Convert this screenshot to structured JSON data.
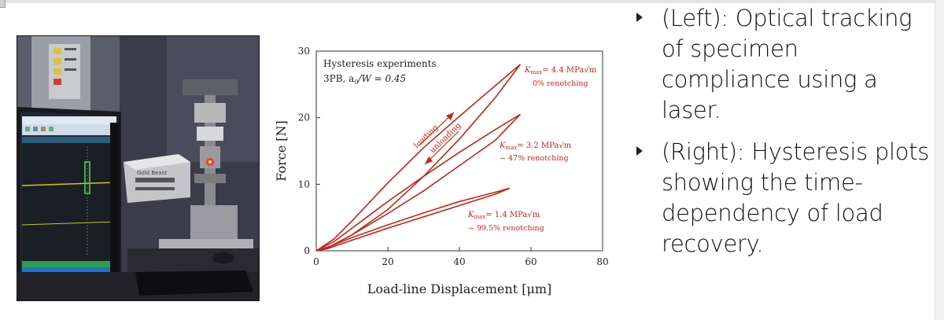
{
  "slide": {
    "bullets": [
      {
        "text": "(Left): Optical tracking of specimen compliance using a laser."
      },
      {
        "text": "(Right): Hysteresis plots showing the time-dependency of load recovery."
      }
    ]
  },
  "photo": {
    "brand_label": "Gold Beast"
  },
  "chart_data": {
    "type": "line",
    "xlabel": "Load-line Displacement [μm]",
    "ylabel": "Force [N]",
    "xlim": [
      0,
      80
    ],
    "ylim": [
      0,
      30
    ],
    "xticks": [
      "0",
      "20",
      "40",
      "60",
      "80"
    ],
    "yticks": [
      "0",
      "10",
      "20",
      "30"
    ],
    "grid": false,
    "title_line1": "Hysteresis experiments",
    "title_line2_prefix": "3PB, a",
    "title_line2_sub": "0",
    "title_line2_suffix": "/W = 0.45",
    "color": "#c0281b",
    "series": [
      {
        "kmax_symbol": "K",
        "kmax_sub": "max",
        "kmax_value": "= 4.4 MPa√m",
        "renotch": "0% renotching",
        "loading": [
          [
            0,
            0
          ],
          [
            5,
            1.8
          ],
          [
            10,
            4.5
          ],
          [
            20,
            10.2
          ],
          [
            30,
            15.5
          ],
          [
            40,
            20.2
          ],
          [
            50,
            24.8
          ],
          [
            57,
            28
          ]
        ],
        "unloading": [
          [
            57,
            28
          ],
          [
            50,
            23
          ],
          [
            40,
            16.8
          ],
          [
            30,
            11.2
          ],
          [
            20,
            6.2
          ],
          [
            10,
            2.4
          ],
          [
            3,
            0.4
          ],
          [
            0,
            0
          ]
        ]
      },
      {
        "kmax_symbol": "K",
        "kmax_sub": "max",
        "kmax_value": "= 3.2 MPa√m",
        "renotch": "~ 47% renotching",
        "loading": [
          [
            0,
            0
          ],
          [
            5,
            1.4
          ],
          [
            10,
            3.4
          ],
          [
            20,
            7.4
          ],
          [
            30,
            11.2
          ],
          [
            40,
            14.8
          ],
          [
            50,
            18.2
          ],
          [
            57,
            20.5
          ]
        ],
        "unloading": [
          [
            57,
            20.5
          ],
          [
            50,
            16.6
          ],
          [
            40,
            12.8
          ],
          [
            30,
            9.0
          ],
          [
            20,
            5.6
          ],
          [
            10,
            2.4
          ],
          [
            3,
            0.4
          ],
          [
            0,
            0
          ]
        ]
      },
      {
        "kmax_symbol": "K",
        "kmax_sub": "max",
        "kmax_value": "= 1.4 MPa√m",
        "renotch": "~ 99.5% renotching",
        "loading": [
          [
            0,
            0
          ],
          [
            5,
            0.9
          ],
          [
            10,
            2.0
          ],
          [
            20,
            3.9
          ],
          [
            30,
            5.7
          ],
          [
            40,
            7.4
          ],
          [
            50,
            8.8
          ],
          [
            54,
            9.4
          ]
        ],
        "unloading": [
          [
            54,
            9.4
          ],
          [
            50,
            8.5
          ],
          [
            40,
            6.8
          ],
          [
            30,
            5.1
          ],
          [
            20,
            3.4
          ],
          [
            10,
            1.6
          ],
          [
            3,
            0.3
          ],
          [
            0,
            0
          ]
        ]
      }
    ],
    "annotations": {
      "loading": "loading",
      "unloading": "unloading"
    }
  }
}
